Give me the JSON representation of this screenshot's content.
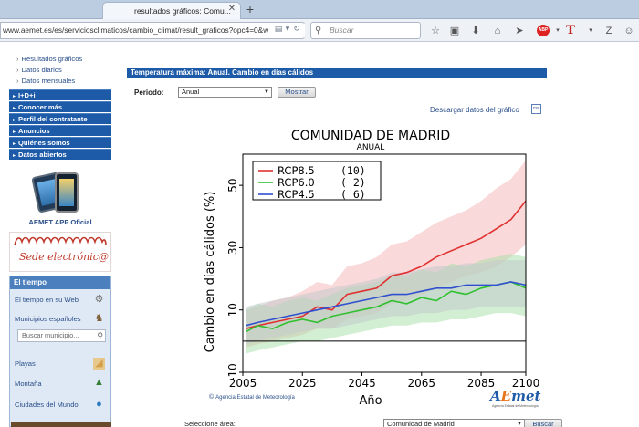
{
  "browser": {
    "tab_title": "resultados gráficos: Comu...",
    "url": "www.aemet.es/es/serviciosclimaticos/cambio_climat/result_graficos?opc4=0&w",
    "search_placeholder": "Buscar",
    "abp_label": "ABP",
    "t_label": "T"
  },
  "sidebar": {
    "sub_links": [
      "Resultados gráficos",
      "Datos diarios",
      "Datos mensuales"
    ],
    "nav_items": [
      "I+D+i",
      "Conocer más",
      "Perfil del contratante",
      "Anuncios",
      "Quiénes somos",
      "Datos abiertos"
    ],
    "app_label": "AEMET APP Oficial",
    "sede_label": "Sede electrónic@",
    "eltiempo": {
      "title": "El tiempo",
      "web_label": "El tiempo en su Web",
      "municipios_label": "Municipios españoles",
      "search_placeholder": "Buscar municipio...",
      "playas_label": "Playas",
      "montana_label": "Montaña",
      "ciudades_label": "Ciudades del Mundo"
    }
  },
  "main": {
    "section_title": "Temperatura máxima: Anual. Cambio en días cálidos",
    "period_label": "Periodo:",
    "period_value": "Anual",
    "show_button": "Mostrar",
    "download_link": "Descargar datos del gráfico",
    "download_icon": "csv",
    "agency_name": "Agencia Estatal de Meteorología",
    "logo_a": "A",
    "logo_e": "E",
    "logo_met": "met",
    "logo_sub": "Agencia Estatal de Meteorología",
    "select_area_label": "Seleccione área:",
    "area_value": "Comunidad de Madrid",
    "search_button": "Buscar"
  },
  "chart_data": {
    "type": "line",
    "title": "COMUNIDAD DE MADRID",
    "subtitle": "ANUAL",
    "xlabel": "Año",
    "ylabel": "Cambio en días cálidos (%)",
    "xlim": [
      2005,
      2100
    ],
    "ylim": [
      -10,
      60
    ],
    "xticks": [
      2005,
      2025,
      2045,
      2065,
      2085,
      2100
    ],
    "yticks": [
      -10,
      10,
      30,
      50
    ],
    "grid": false,
    "legend_position": "top-left",
    "series": [
      {
        "name": "RCP8.5",
        "count": "(10)",
        "color": "#e03030",
        "band_color": "#f4b3b3",
        "x": [
          2006,
          2010,
          2015,
          2020,
          2025,
          2030,
          2035,
          2040,
          2045,
          2050,
          2055,
          2060,
          2065,
          2070,
          2075,
          2080,
          2085,
          2090,
          2095,
          2100
        ],
        "values": [
          4,
          5,
          6,
          7,
          8,
          11,
          10,
          15,
          16,
          17,
          21,
          22,
          24,
          27,
          29,
          31,
          33,
          36,
          39,
          45
        ],
        "lower": [
          -2,
          -1,
          0,
          1,
          2,
          4,
          4,
          7,
          8,
          9,
          12,
          13,
          15,
          17,
          19,
          21,
          22,
          24,
          27,
          31
        ],
        "upper": [
          10,
          11,
          13,
          14,
          16,
          19,
          18,
          24,
          25,
          27,
          31,
          32,
          35,
          38,
          40,
          42,
          45,
          49,
          52,
          58
        ]
      },
      {
        "name": "RCP6.0",
        "count": "(  2)",
        "color": "#30c030",
        "band_color": "#a8e0a8",
        "x": [
          2006,
          2010,
          2015,
          2020,
          2025,
          2030,
          2035,
          2040,
          2045,
          2050,
          2055,
          2060,
          2065,
          2070,
          2075,
          2080,
          2085,
          2090,
          2095,
          2100
        ],
        "values": [
          3,
          5,
          4,
          6,
          7,
          6,
          8,
          9,
          10,
          11,
          13,
          12,
          14,
          13,
          16,
          15,
          17,
          18,
          19,
          17
        ],
        "lower": [
          -4,
          -3,
          -2,
          -1,
          0,
          0,
          1,
          2,
          3,
          4,
          5,
          5,
          6,
          6,
          7,
          7,
          8,
          9,
          9,
          8
        ],
        "upper": [
          10,
          12,
          11,
          13,
          14,
          13,
          15,
          17,
          18,
          19,
          21,
          21,
          23,
          22,
          25,
          24,
          26,
          27,
          28,
          27
        ]
      },
      {
        "name": "RCP4.5",
        "count": "(  6)",
        "color": "#3050d0",
        "band_color": "#c0c8cc",
        "x": [
          2006,
          2010,
          2015,
          2020,
          2025,
          2030,
          2035,
          2040,
          2045,
          2050,
          2055,
          2060,
          2065,
          2070,
          2075,
          2080,
          2085,
          2090,
          2095,
          2100
        ],
        "values": [
          5,
          6,
          7,
          8,
          9,
          10,
          11,
          12,
          13,
          14,
          15,
          15,
          16,
          17,
          17,
          18,
          18,
          18,
          19,
          18
        ],
        "lower": [
          -1,
          0,
          1,
          2,
          3,
          4,
          4,
          5,
          6,
          7,
          8,
          8,
          9,
          9,
          10,
          10,
          11,
          11,
          11,
          11
        ],
        "upper": [
          11,
          12,
          13,
          14,
          15,
          16,
          17,
          18,
          19,
          20,
          22,
          22,
          23,
          24,
          24,
          25,
          25,
          26,
          26,
          26
        ]
      }
    ]
  }
}
